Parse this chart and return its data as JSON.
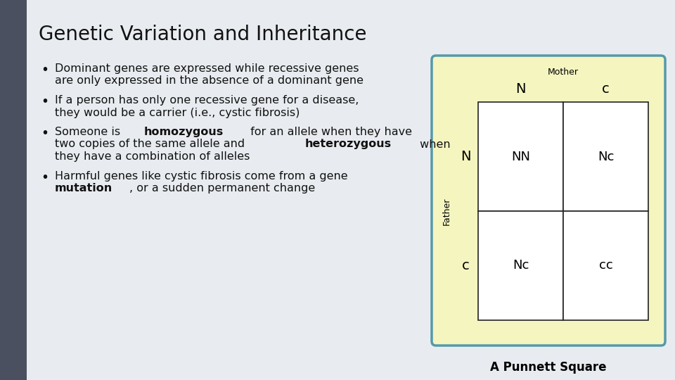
{
  "title": "Genetic Variation and Inheritance",
  "title_fontsize": 20,
  "background_color": "#e8ecf0",
  "sidebar_color": "#4a5060",
  "bullet_points": [
    {
      "lines": [
        [
          {
            "text": "Dominant genes are expressed while recessive genes",
            "bold": false
          }
        ],
        [
          {
            "text": "are only expressed in the absence of a dominant gene",
            "bold": false
          }
        ]
      ]
    },
    {
      "lines": [
        [
          {
            "text": "If a person has only one recessive gene for a disease,",
            "bold": false
          }
        ],
        [
          {
            "text": "they would be a carrier (i.e., cystic fibrosis)",
            "bold": false
          }
        ]
      ]
    },
    {
      "lines": [
        [
          {
            "text": "Someone is ",
            "bold": false
          },
          {
            "text": "homozygous",
            "bold": true
          },
          {
            "text": " for an allele when they have",
            "bold": false
          }
        ],
        [
          {
            "text": "two copies of the same allele and ",
            "bold": false
          },
          {
            "text": "heterozygous",
            "bold": true
          },
          {
            "text": " when",
            "bold": false
          }
        ],
        [
          {
            "text": "they have a combination of alleles",
            "bold": false
          }
        ]
      ]
    },
    {
      "lines": [
        [
          {
            "text": "Harmful genes like cystic fibrosis come from a gene",
            "bold": false
          }
        ],
        [
          {
            "text": "mutation",
            "bold": true
          },
          {
            "text": ", or a sudden permanent change",
            "bold": false
          }
        ]
      ]
    }
  ],
  "bullet_fontsize": 11.5,
  "punnett": {
    "bg_color": "#f5f5c0",
    "border_color": "#5599aa",
    "border_width": 2.5,
    "mother_label": "Mother",
    "father_label": "Father",
    "col_labels": [
      "N",
      "c"
    ],
    "row_labels": [
      "N",
      "c"
    ],
    "cells": [
      [
        "NN",
        "Nc"
      ],
      [
        "Nc",
        "cc"
      ]
    ],
    "label_fontsize": 14,
    "cell_fontsize": 13,
    "header_fontsize": 9
  },
  "caption": "A Punnett Square",
  "caption_fontsize": 12
}
